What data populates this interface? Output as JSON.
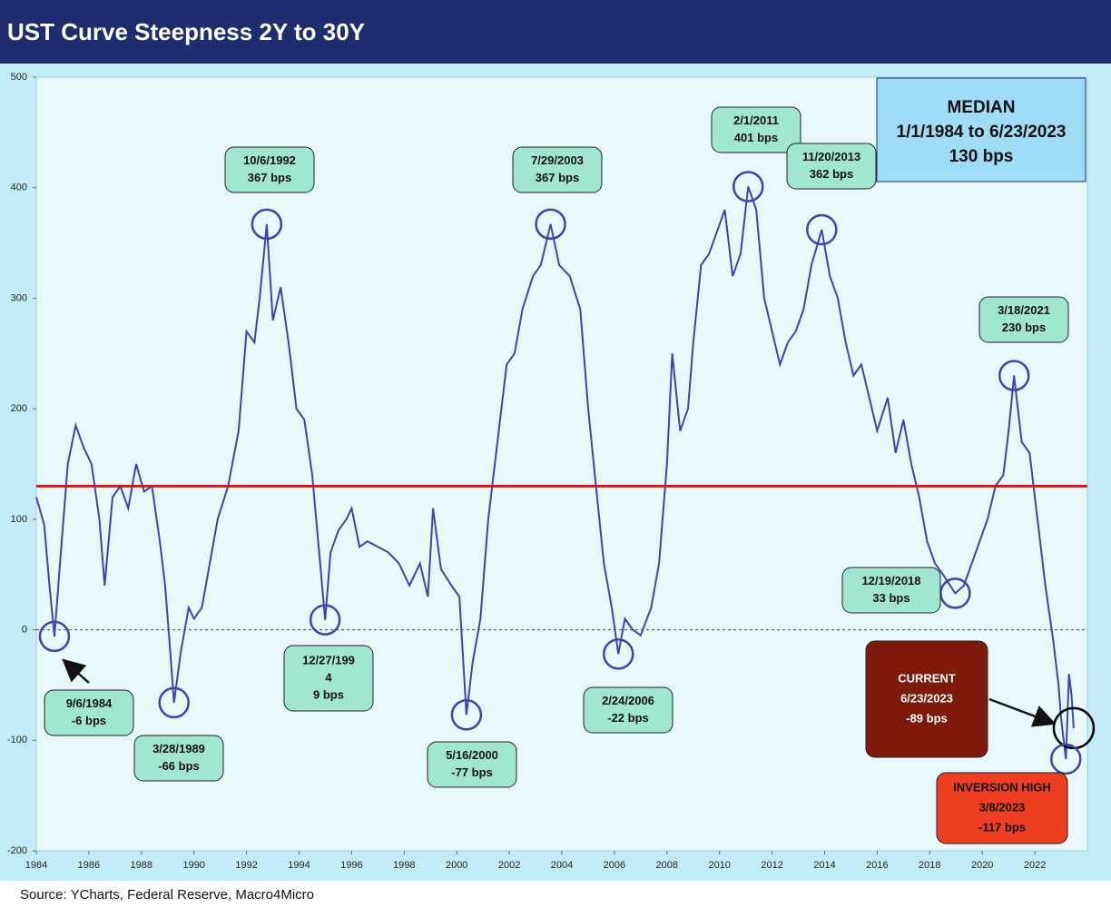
{
  "chart_data": {
    "type": "line",
    "title": "UST Curve Steepness 2Y to 30Y",
    "source": "Source: YCharts, Federal Reserve, Macro4Micro",
    "xlim": [
      1984,
      2024
    ],
    "xticks": [
      1984,
      1986,
      1988,
      1990,
      1992,
      1994,
      1996,
      1998,
      2000,
      2002,
      2004,
      2006,
      2008,
      2010,
      2012,
      2014,
      2016,
      2018,
      2020,
      2022
    ],
    "ylim": [
      -200,
      500
    ],
    "yticks": [
      -200,
      -100,
      0,
      100,
      200,
      300,
      400,
      500
    ],
    "series": [
      {
        "color": "#3b46a8",
        "x": [
          1984.0,
          1984.3,
          1984.5,
          1984.69,
          1984.9,
          1985.2,
          1985.5,
          1985.8,
          1986.1,
          1986.4,
          1986.6,
          1986.9,
          1987.2,
          1987.5,
          1987.8,
          1988.1,
          1988.4,
          1988.7,
          1988.9,
          1989.1,
          1989.24,
          1989.5,
          1989.8,
          1990.0,
          1990.3,
          1990.6,
          1990.9,
          1991.3,
          1991.7,
          1992.0,
          1992.3,
          1992.5,
          1992.77,
          1993.0,
          1993.3,
          1993.6,
          1993.9,
          1994.2,
          1994.5,
          1994.8,
          1994.99,
          1995.2,
          1995.5,
          1995.8,
          1996.0,
          1996.3,
          1996.6,
          1997.0,
          1997.4,
          1997.8,
          1998.2,
          1998.6,
          1998.9,
          1999.1,
          1999.4,
          1999.8,
          2000.1,
          2000.37,
          2000.6,
          2000.9,
          2001.2,
          2001.5,
          2001.9,
          2002.2,
          2002.5,
          2002.9,
          2003.2,
          2003.57,
          2003.9,
          2004.3,
          2004.7,
          2005.0,
          2005.3,
          2005.6,
          2005.9,
          2006.15,
          2006.4,
          2006.7,
          2007.0,
          2007.4,
          2007.7,
          2008.0,
          2008.2,
          2008.5,
          2008.8,
          2009.0,
          2009.3,
          2009.6,
          2009.9,
          2010.2,
          2010.5,
          2010.8,
          2011.09,
          2011.4,
          2011.7,
          2012.0,
          2012.3,
          2012.6,
          2012.9,
          2013.2,
          2013.5,
          2013.89,
          2014.2,
          2014.5,
          2014.8,
          2015.1,
          2015.4,
          2015.7,
          2016.0,
          2016.4,
          2016.7,
          2017.0,
          2017.3,
          2017.6,
          2017.9,
          2018.2,
          2018.5,
          2018.97,
          2019.3,
          2019.6,
          2019.9,
          2020.2,
          2020.5,
          2020.8,
          2021.0,
          2021.21,
          2021.5,
          2021.8,
          2022.1,
          2022.4,
          2022.7,
          2022.9,
          2023.0,
          2023.18,
          2023.3,
          2023.4,
          2023.48
        ],
        "values": [
          120,
          95,
          40,
          -6,
          60,
          150,
          185,
          165,
          150,
          100,
          40,
          120,
          130,
          110,
          150,
          125,
          130,
          80,
          40,
          -20,
          -66,
          -20,
          20,
          10,
          20,
          60,
          100,
          130,
          180,
          270,
          260,
          300,
          367,
          280,
          310,
          260,
          200,
          190,
          140,
          60,
          9,
          70,
          90,
          100,
          110,
          75,
          80,
          75,
          70,
          60,
          40,
          60,
          30,
          110,
          55,
          40,
          30,
          -77,
          -30,
          10,
          100,
          160,
          240,
          250,
          290,
          320,
          330,
          367,
          330,
          320,
          290,
          200,
          130,
          60,
          20,
          -22,
          10,
          0,
          -5,
          20,
          60,
          150,
          250,
          180,
          200,
          260,
          330,
          340,
          360,
          380,
          320,
          340,
          401,
          380,
          300,
          270,
          240,
          260,
          270,
          290,
          330,
          362,
          320,
          300,
          260,
          230,
          240,
          210,
          180,
          210,
          160,
          190,
          150,
          120,
          80,
          60,
          50,
          33,
          40,
          60,
          80,
          100,
          130,
          140,
          180,
          230,
          170,
          160,
          100,
          40,
          -10,
          -50,
          -80,
          -117,
          -40,
          -60,
          -89
        ]
      }
    ],
    "zero_line": 0,
    "median": {
      "value": 130,
      "color": "#d0191b",
      "lines": [
        "MEDIAN",
        "1/1/1984 to 6/23/2023",
        "130 bps"
      ]
    },
    "annotations": [
      {
        "lines": [
          "9/6/1984",
          "-6 bps"
        ],
        "x": 1984.69,
        "y": -6
      },
      {
        "lines": [
          "3/28/1989",
          "-66 bps"
        ],
        "x": 1989.24,
        "y": -66
      },
      {
        "lines": [
          "10/6/1992",
          "367 bps"
        ],
        "x": 1992.77,
        "y": 367
      },
      {
        "lines": [
          "12/27/199",
          "4",
          "9 bps"
        ],
        "x": 1994.99,
        "y": 9
      },
      {
        "lines": [
          "5/16/2000",
          "-77 bps"
        ],
        "x": 2000.37,
        "y": -77
      },
      {
        "lines": [
          "7/29/2003",
          "367 bps"
        ],
        "x": 2003.57,
        "y": 367
      },
      {
        "lines": [
          "2/24/2006",
          "-22 bps"
        ],
        "x": 2006.15,
        "y": -22
      },
      {
        "lines": [
          "2/1/2011",
          "401 bps"
        ],
        "x": 2011.09,
        "y": 401
      },
      {
        "lines": [
          "11/20/2013",
          "362 bps"
        ],
        "x": 2013.89,
        "y": 362
      },
      {
        "lines": [
          "12/19/2018",
          "33 bps"
        ],
        "x": 2018.97,
        "y": 33
      },
      {
        "lines": [
          "3/18/2021",
          "230 bps"
        ],
        "x": 2021.21,
        "y": 230
      },
      {
        "lines": [
          "CURRENT",
          "6/23/2023",
          "-89 bps"
        ],
        "x": 2023.48,
        "y": -89
      },
      {
        "lines": [
          "INVERSION HIGH",
          "3/8/2023",
          "-117 bps"
        ],
        "x": 2023.18,
        "y": -117
      }
    ]
  }
}
